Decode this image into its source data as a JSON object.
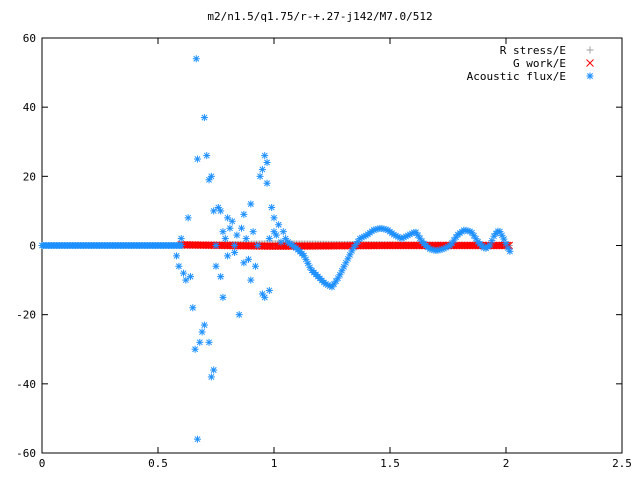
{
  "chart_data": {
    "type": "scatter",
    "title": "m2/n1.5/q1.75/r-+.27-j142/M7.0/512",
    "xlim": [
      0,
      2.5
    ],
    "ylim": [
      -60,
      60
    ],
    "x_ticks": [
      0,
      0.5,
      1,
      1.5,
      2,
      2.5
    ],
    "y_ticks": [
      -60,
      -40,
      -20,
      0,
      20,
      40,
      60
    ],
    "x_tick_labels": [
      "0",
      "0.5",
      "1",
      "1.5",
      "2",
      "2.5"
    ],
    "y_tick_labels": [
      "-60",
      "-40",
      "-20",
      "0",
      "20",
      "40",
      "60"
    ],
    "legend_position": "top-right",
    "grid": false,
    "series": [
      {
        "name": "R stress/E",
        "marker": "plus",
        "color": "#a0a0a0",
        "x_range": [
          0.6,
          2.02
        ],
        "profile": [
          [
            0.6,
            0.0
          ],
          [
            1.0,
            0.5
          ],
          [
            1.3,
            0.3
          ],
          [
            2.02,
            0.0
          ]
        ]
      },
      {
        "name": "G work/E",
        "marker": "cross",
        "color": "#ff0000",
        "x_range": [
          0.6,
          2.02
        ],
        "profile": [
          [
            0.6,
            0.2
          ],
          [
            1.0,
            -0.2
          ],
          [
            1.5,
            0.0
          ],
          [
            2.02,
            0.0
          ]
        ]
      },
      {
        "name": "Acoustic flux/E",
        "marker": "asterisk",
        "color": "#1e90ff",
        "flat_x_range": [
          0.0,
          0.6
        ],
        "flat_y": 0,
        "scattered_points": [
          [
            0.58,
            -3
          ],
          [
            0.59,
            -6
          ],
          [
            0.6,
            2
          ],
          [
            0.61,
            -8
          ],
          [
            0.62,
            -10
          ],
          [
            0.63,
            8
          ],
          [
            0.64,
            -9
          ],
          [
            0.65,
            -18
          ],
          [
            0.66,
            -30
          ],
          [
            0.665,
            54
          ],
          [
            0.67,
            25
          ],
          [
            0.67,
            -56
          ],
          [
            0.68,
            -28
          ],
          [
            0.69,
            -25
          ],
          [
            0.7,
            37
          ],
          [
            0.71,
            26
          ],
          [
            0.7,
            -23
          ],
          [
            0.72,
            19
          ],
          [
            0.73,
            20
          ],
          [
            0.72,
            -28
          ],
          [
            0.73,
            -38
          ],
          [
            0.74,
            -36
          ],
          [
            0.74,
            10
          ],
          [
            0.75,
            0
          ],
          [
            0.75,
            -6
          ],
          [
            0.76,
            11
          ],
          [
            0.77,
            10
          ],
          [
            0.77,
            -9
          ],
          [
            0.78,
            4
          ],
          [
            0.78,
            -15
          ],
          [
            0.79,
            2
          ],
          [
            0.8,
            -3
          ],
          [
            0.8,
            8
          ],
          [
            0.81,
            5
          ],
          [
            0.82,
            7
          ],
          [
            0.83,
            0
          ],
          [
            0.83,
            -2
          ],
          [
            0.84,
            3
          ],
          [
            0.85,
            -20
          ],
          [
            0.86,
            5
          ],
          [
            0.87,
            9
          ],
          [
            0.87,
            -5
          ],
          [
            0.88,
            2
          ],
          [
            0.89,
            -4
          ],
          [
            0.9,
            12
          ],
          [
            0.9,
            -10
          ],
          [
            0.91,
            4
          ],
          [
            0.92,
            -6
          ],
          [
            0.93,
            0
          ],
          [
            0.94,
            20
          ],
          [
            0.95,
            22
          ],
          [
            0.95,
            -14
          ],
          [
            0.96,
            26
          ],
          [
            0.96,
            -15
          ],
          [
            0.97,
            18
          ],
          [
            0.97,
            24
          ],
          [
            0.98,
            2
          ],
          [
            0.98,
            -13
          ],
          [
            0.99,
            11
          ],
          [
            1.0,
            4
          ],
          [
            1.0,
            8
          ],
          [
            1.01,
            3
          ],
          [
            1.02,
            6
          ],
          [
            1.03,
            1
          ],
          [
            1.04,
            4
          ],
          [
            1.05,
            2
          ],
          [
            1.06,
            1
          ]
        ],
        "curve_profile": [
          [
            1.06,
            1
          ],
          [
            1.1,
            -1
          ],
          [
            1.13,
            -3
          ],
          [
            1.16,
            -7
          ],
          [
            1.19,
            -9
          ],
          [
            1.22,
            -11
          ],
          [
            1.25,
            -12
          ],
          [
            1.28,
            -9
          ],
          [
            1.31,
            -5
          ],
          [
            1.34,
            -1
          ],
          [
            1.37,
            2
          ],
          [
            1.4,
            3
          ],
          [
            1.43,
            4.5
          ],
          [
            1.46,
            5
          ],
          [
            1.49,
            4.5
          ],
          [
            1.52,
            3
          ],
          [
            1.55,
            2
          ],
          [
            1.58,
            3
          ],
          [
            1.61,
            4
          ],
          [
            1.64,
            1
          ],
          [
            1.67,
            -1
          ],
          [
            1.7,
            -1.5
          ],
          [
            1.73,
            -1
          ],
          [
            1.76,
            0
          ],
          [
            1.79,
            3
          ],
          [
            1.82,
            4.5
          ],
          [
            1.85,
            4
          ],
          [
            1.88,
            1
          ],
          [
            1.91,
            -1
          ],
          [
            1.93,
            0
          ],
          [
            1.95,
            3
          ],
          [
            1.97,
            4.5
          ],
          [
            1.99,
            2
          ],
          [
            2.01,
            -1
          ],
          [
            2.02,
            -2
          ]
        ]
      }
    ]
  }
}
